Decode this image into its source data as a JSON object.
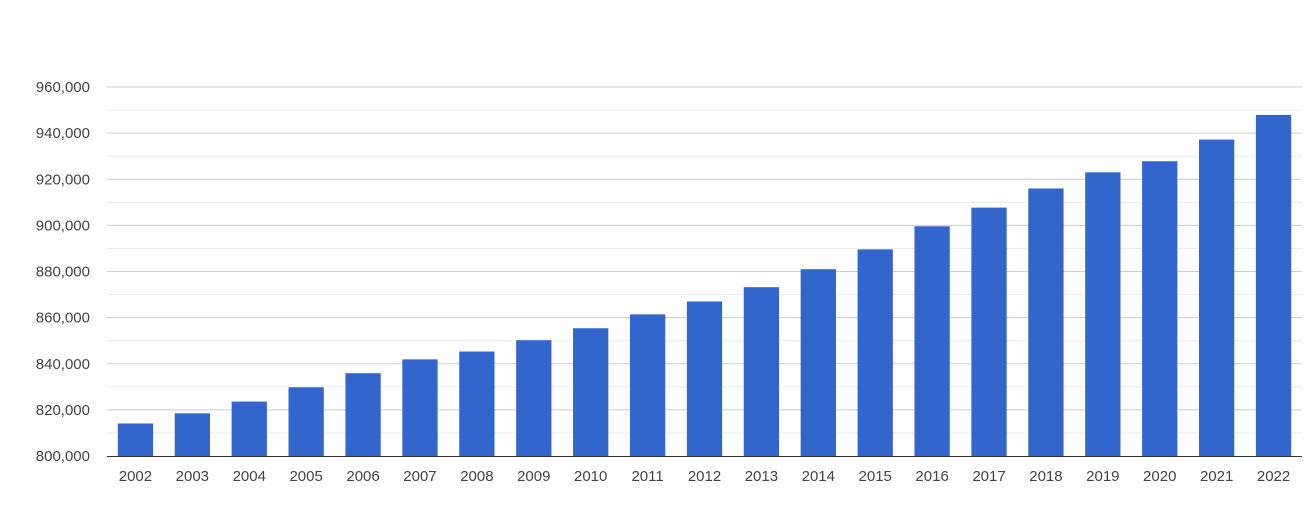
{
  "chart_data": {
    "type": "bar",
    "title": "",
    "xlabel": "",
    "ylabel": "",
    "categories": [
      "2002",
      "2003",
      "2004",
      "2005",
      "2006",
      "2007",
      "2008",
      "2009",
      "2010",
      "2011",
      "2012",
      "2013",
      "2014",
      "2015",
      "2016",
      "2017",
      "2018",
      "2019",
      "2020",
      "2021",
      "2022"
    ],
    "values": [
      814100,
      818500,
      823600,
      829800,
      835900,
      841900,
      845300,
      850200,
      855400,
      861400,
      867000,
      873200,
      881000,
      889600,
      899600,
      907700,
      916000,
      923000,
      927800,
      937200,
      947900
    ],
    "ylim": [
      800000,
      960000
    ],
    "y_ticks": [
      800000,
      820000,
      840000,
      860000,
      880000,
      900000,
      920000,
      940000,
      960000
    ],
    "y_tick_labels": [
      "800,000",
      "820,000",
      "840,000",
      "860,000",
      "880,000",
      "900,000",
      "920,000",
      "940,000",
      "960,000"
    ],
    "grid": true,
    "legend": "none",
    "bar_color": "#3366cc"
  }
}
